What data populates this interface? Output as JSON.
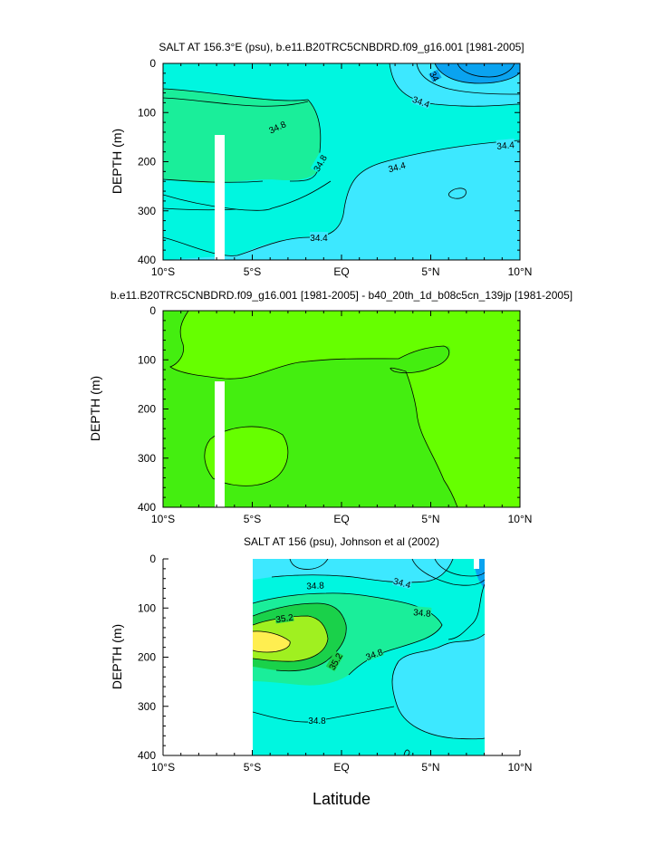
{
  "figure": {
    "xlabel": "Latitude"
  },
  "chart_data": [
    {
      "type": "heatmap",
      "title": "SALT AT 156.3°E (psu), b.e11.B20TRC5CNBDRD.f09_g16.001 [1981-2005]",
      "ylabel": "DEPTH (m)",
      "xlim": [
        -10,
        10
      ],
      "ylim": [
        400,
        0
      ],
      "x_ticks": [
        "10°S",
        "5°S",
        "EQ",
        "5°N",
        "10°N"
      ],
      "y_ticks": [
        "0",
        "100",
        "200",
        "300",
        "400"
      ],
      "colors": {
        "fresh": "#0aa3f0",
        "low": "#3de8ff",
        "mid": "#00f6e0",
        "high": "#1aee9a",
        "mask": "#ffffff"
      },
      "contour_labels": [
        {
          "text": "34",
          "x": 5.2,
          "y": 22
        },
        {
          "text": "34.4",
          "x": 4.5,
          "y": 78
        },
        {
          "text": "34.8",
          "x": -3.8,
          "y": 128
        },
        {
          "text": "34.4",
          "x": 9.2,
          "y": 165
        },
        {
          "text": "34.8",
          "x": -1.2,
          "y": 188
        },
        {
          "text": "34.4",
          "x": 3.0,
          "y": 210
        },
        {
          "text": "34.4",
          "x": -1.3,
          "y": 348
        }
      ]
    },
    {
      "type": "heatmap",
      "title": "b.e11.B20TRC5CNBDRD.f09_g16.001 [1981-2005] - b40_20th_1d_b08c5cn_139jp [1981-2005]",
      "ylabel": "DEPTH (m)",
      "xlim": [
        -10,
        10
      ],
      "ylim": [
        400,
        0
      ],
      "x_ticks": [
        "10°S",
        "5°S",
        "EQ",
        "5°N",
        "10°N"
      ],
      "y_ticks": [
        "0",
        "100",
        "200",
        "300",
        "400"
      ],
      "colors": {
        "base": "#66ff00",
        "upper": "#44ee10",
        "mask": "#ffffff"
      },
      "contour_labels": []
    },
    {
      "type": "heatmap",
      "title": "SALT AT 156 (psu), Johnson et al (2002)",
      "ylabel": "DEPTH (m)",
      "xlim": [
        -10,
        10
      ],
      "ylim": [
        400,
        0
      ],
      "x_ticks": [
        "10°S",
        "5°S",
        "EQ",
        "5°N",
        "10°N"
      ],
      "y_ticks": [
        "0",
        "100",
        "200",
        "300",
        "400"
      ],
      "data_extent": {
        "x": [
          -5,
          8
        ],
        "y": [
          0,
          400
        ]
      },
      "colors": {
        "fresh": "#0aa3f0",
        "low": "#3de8ff",
        "mid": "#00f6e0",
        "high": "#1aee9a",
        "higher": "#1ad14a",
        "highest": "#a0f020",
        "max": "#ffee50",
        "mask": "#ffffff"
      },
      "contour_labels": [
        {
          "text": "34.4",
          "x": 3.3,
          "y": 52
        },
        {
          "text": "34.8",
          "x": -1.8,
          "y": 83
        },
        {
          "text": "34.8",
          "x": 4.5,
          "y": 112
        },
        {
          "text": "35.2",
          "x": -3.8,
          "y": 122
        },
        {
          "text": "34.8",
          "x": 1.9,
          "y": 198
        },
        {
          "text": "35.2",
          "x": -0.6,
          "y": 208
        },
        {
          "text": "34.8",
          "x": -1.4,
          "y": 335
        }
      ]
    }
  ]
}
